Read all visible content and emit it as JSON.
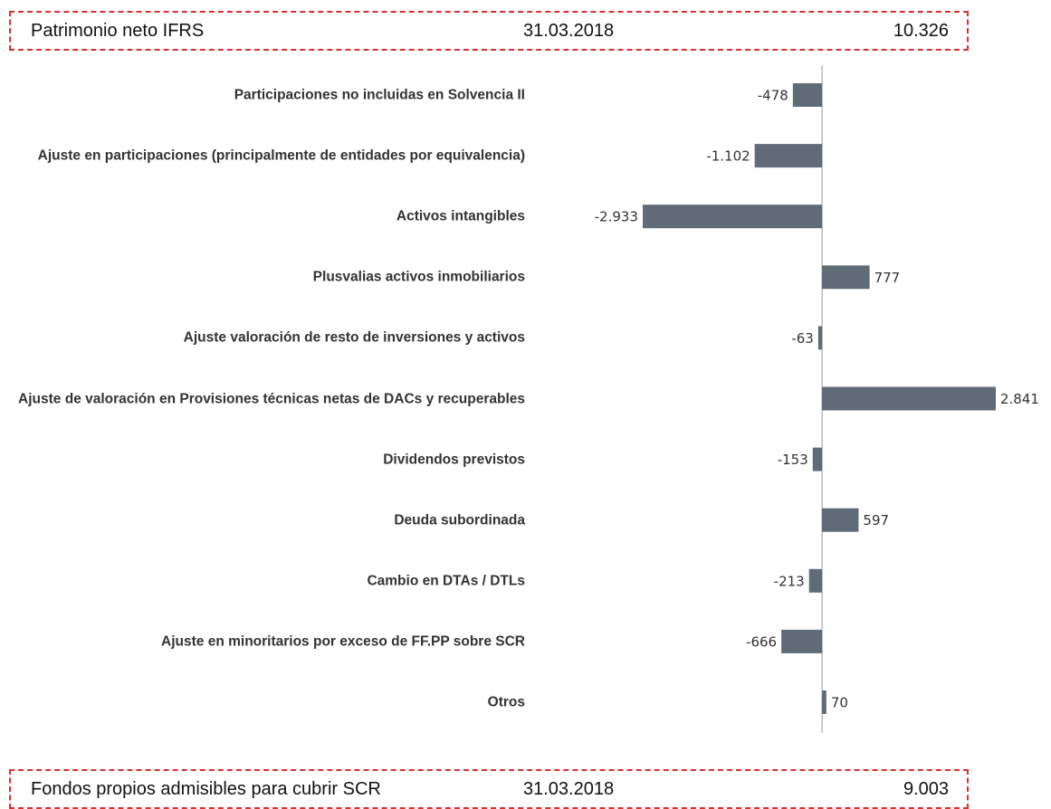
{
  "chart_data": {
    "type": "bar",
    "orientation": "horizontal",
    "header": {
      "label": "Patrimonio neto IFRS",
      "date": "31.03.2018",
      "value": "10.326"
    },
    "footer": {
      "label": "Fondos propios admisibles para cubrir SCR",
      "date": "31.03.2018",
      "value": "9.003"
    },
    "categories": [
      "Participaciones no incluidas en Solvencia II",
      "Ajuste en participaciones (principalmente de entidades por equivalencia)",
      "Activos intangibles",
      "Plusvalias activos inmobiliarios",
      "Ajuste valoración de resto de inversiones y activos",
      "Ajuste de valoración en Provisiones técnicas netas de DACs y recuperables",
      "Dividendos previstos",
      "Deuda subordinada",
      "Cambio en DTAs / DTLs",
      "Ajuste en minoritarios por exceso de FF.PP sobre SCR",
      "Otros"
    ],
    "values": [
      -478,
      -1102,
      -2933,
      777,
      -63,
      2841,
      -153,
      597,
      -213,
      -666,
      70
    ],
    "value_labels": [
      "-478",
      "-1.102",
      "-2.933",
      "777",
      "-63",
      "2.841",
      "-153",
      "597",
      "-213",
      "-666",
      "70"
    ],
    "color": "#5f6b77"
  }
}
